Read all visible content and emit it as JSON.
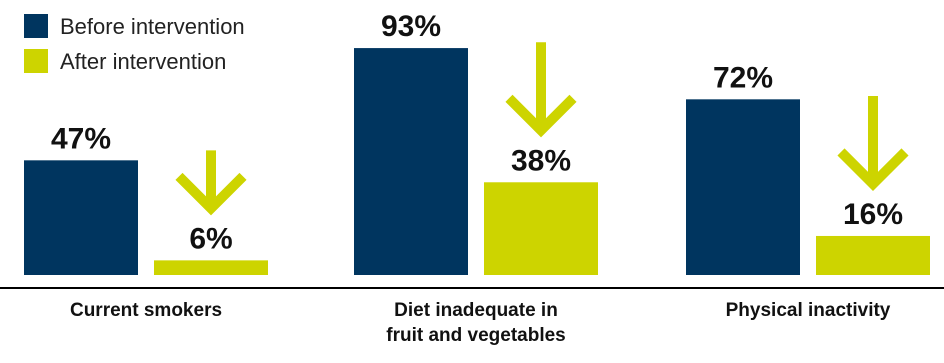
{
  "chart_data": {
    "type": "bar",
    "title": "",
    "xlabel": "",
    "ylabel": "",
    "ylim": [
      0,
      100
    ],
    "grid": false,
    "legend_position": "top-left",
    "unit": "%",
    "categories": [
      [
        "Current smokers"
      ],
      [
        "Diet inadequate in",
        "fruit and vegetables"
      ],
      [
        "Physical inactivity"
      ]
    ],
    "series": [
      {
        "name": "Before intervention",
        "values": [
          47,
          93,
          72
        ],
        "color": "#00355f",
        "labels": [
          "47%",
          "93%",
          "72%"
        ]
      },
      {
        "name": "After intervention",
        "values": [
          6,
          38,
          16
        ],
        "color": "#cdd400",
        "labels": [
          "6%",
          "38%",
          "16%"
        ]
      }
    ],
    "annotation_icon": "arrow-down-icon"
  }
}
